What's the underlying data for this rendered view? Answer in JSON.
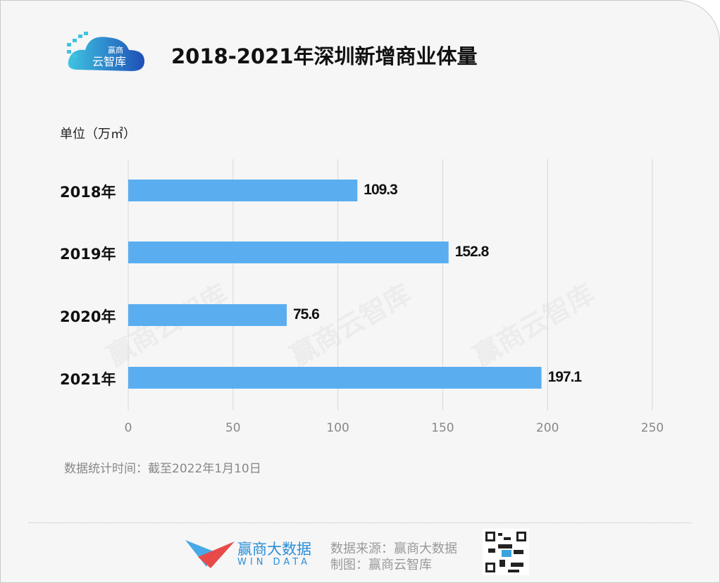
{
  "header": {
    "logo_text_top": "赢商",
    "logo_text_bottom": "云智库",
    "title": "2018-2021年深圳新增商业体量"
  },
  "chart_data": {
    "type": "bar",
    "orientation": "horizontal",
    "title": "2018-2021年深圳新增商业体量",
    "unit_label": "单位（万㎡）",
    "categories": [
      "2018年",
      "2019年",
      "2020年",
      "2021年"
    ],
    "values": [
      109.3,
      152.8,
      75.6,
      197.1
    ],
    "value_labels": [
      "109.3",
      "152.8",
      "75.6",
      "197.1"
    ],
    "xlim": [
      0,
      250
    ],
    "xticks": [
      "0",
      "50",
      "100",
      "150",
      "200",
      "250"
    ],
    "grid": true,
    "bar_color": "#5aaef0"
  },
  "note": "数据统计时间：截至2022年1月10日",
  "watermark": "赢商云智库",
  "footer": {
    "brand_cn": "赢商大数据",
    "brand_en": "WIN DATA",
    "source": "数据来源：赢商大数据",
    "made_by": "制图：赢商云智库"
  }
}
